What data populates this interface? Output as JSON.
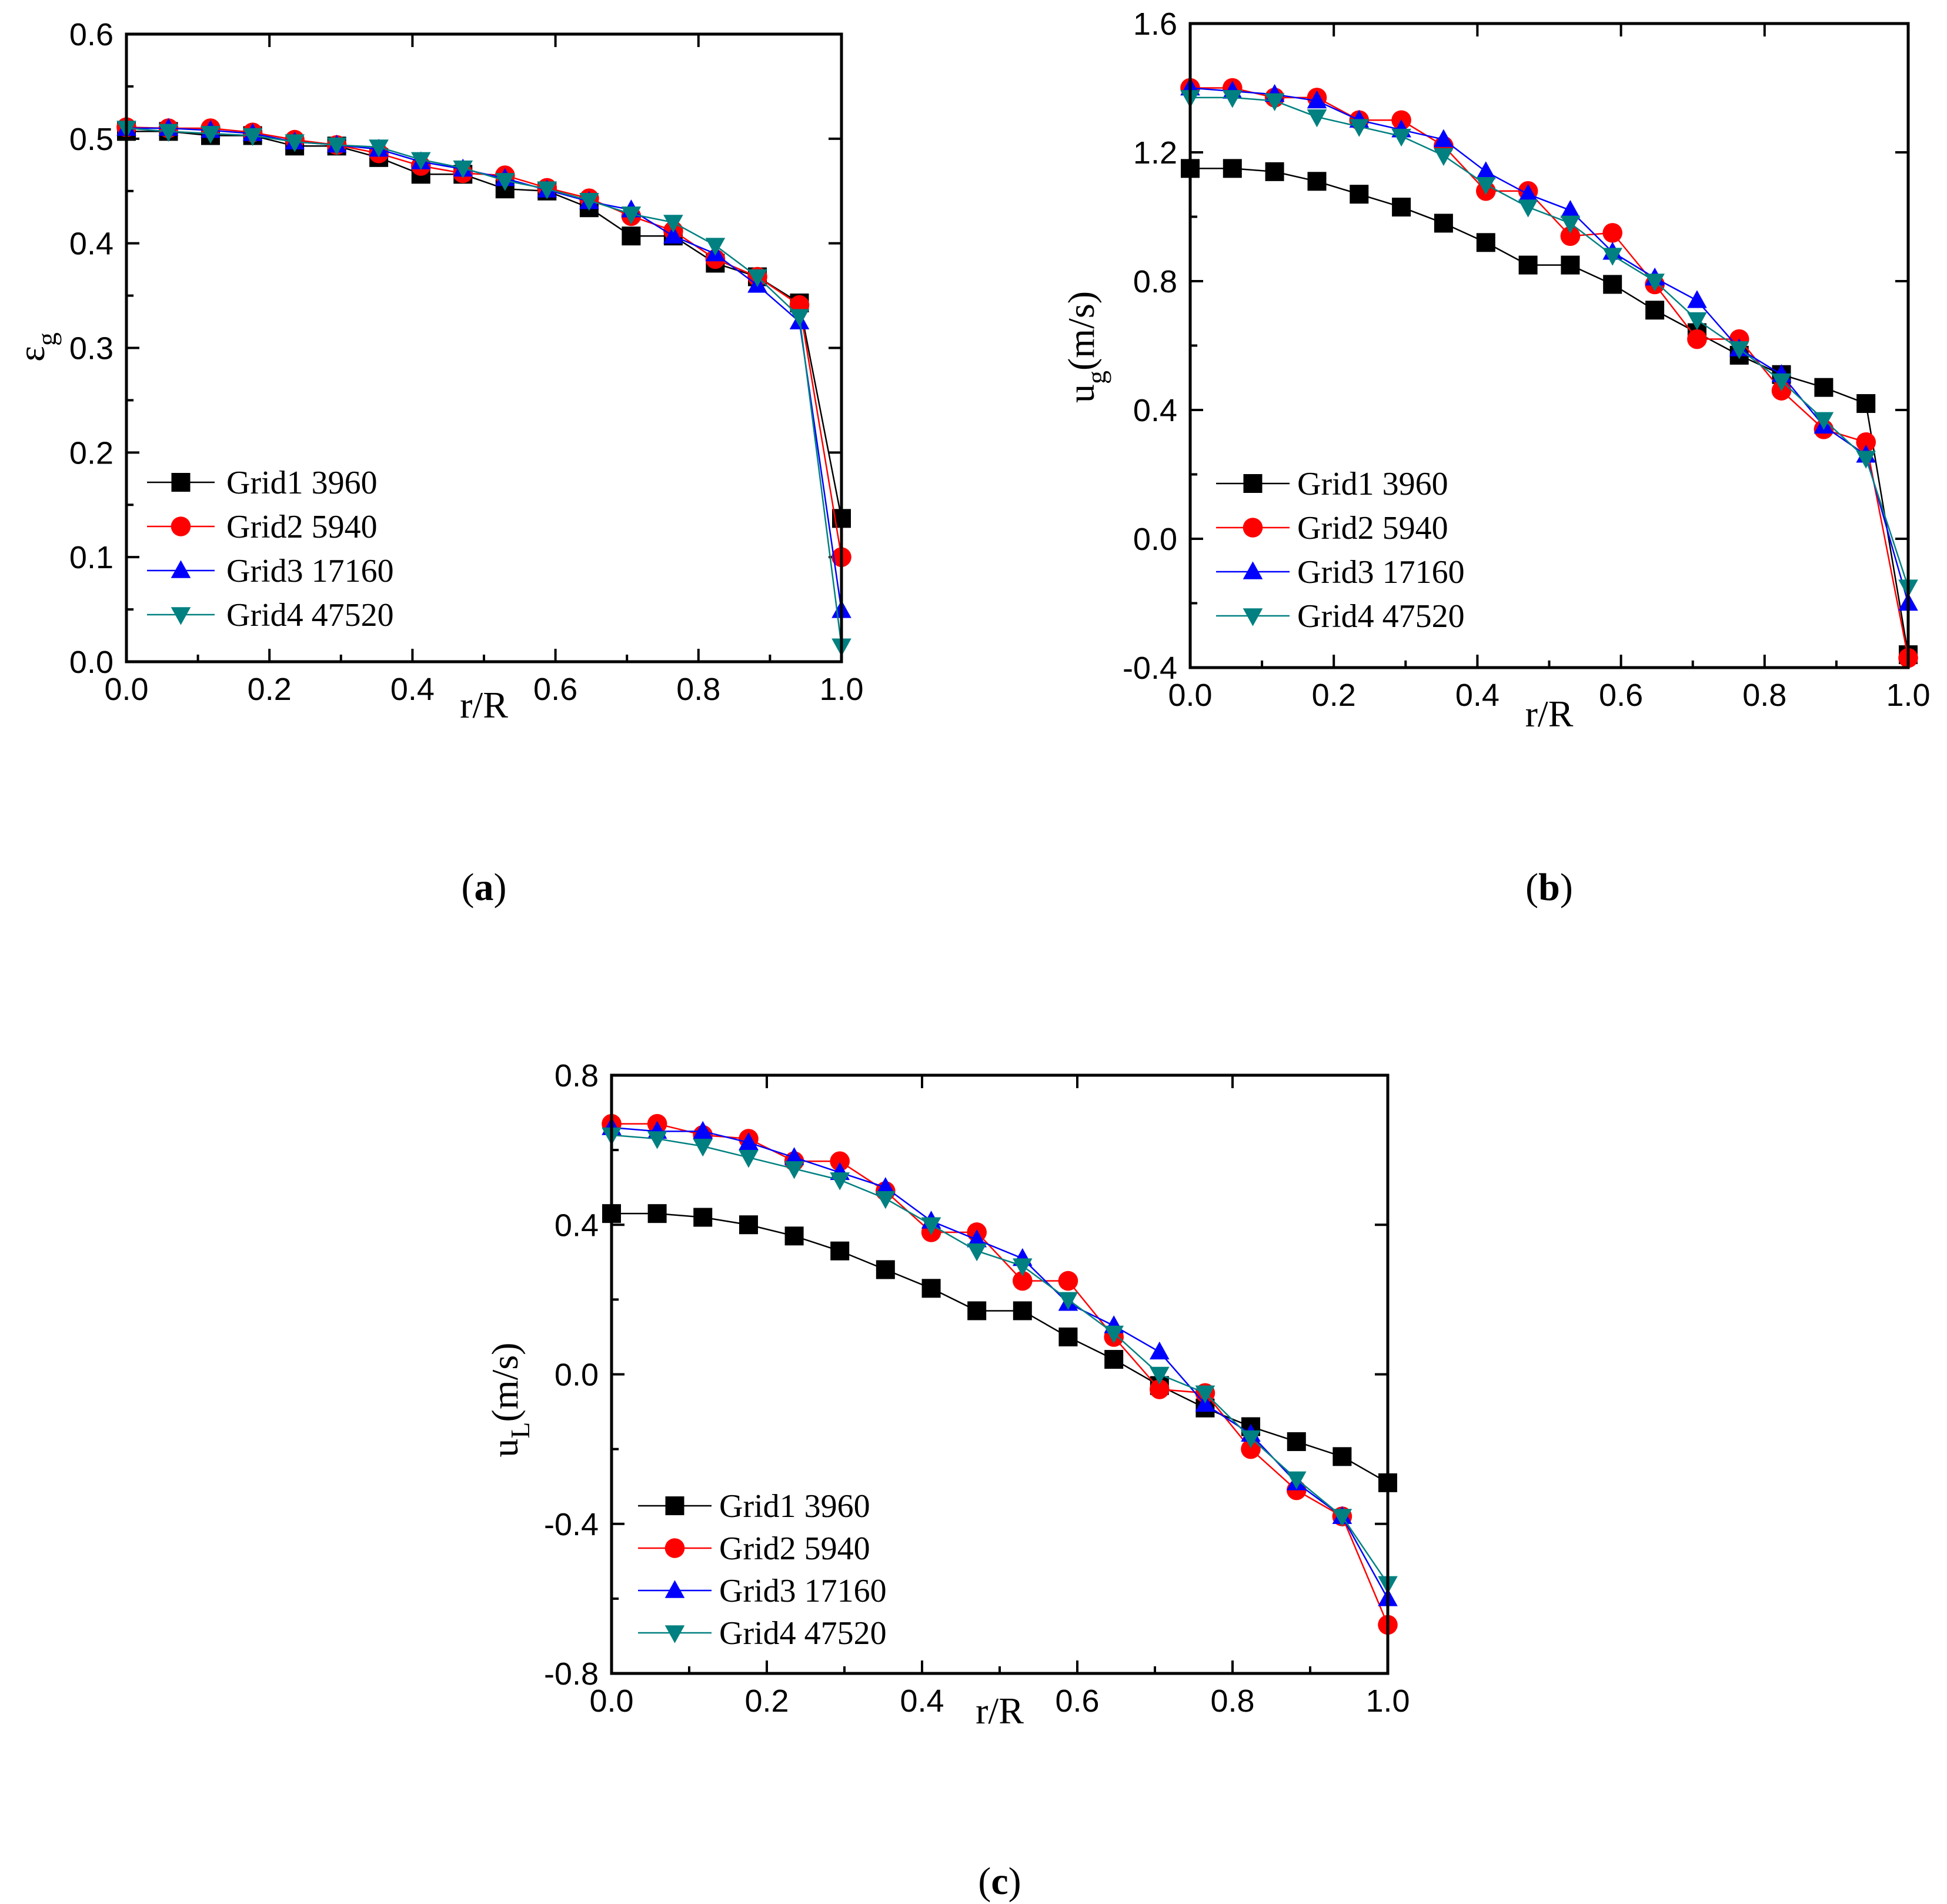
{
  "chart_data": [
    {
      "type": "line",
      "panel": "a",
      "panel_label": "a",
      "title": "",
      "xlabel": "r/R",
      "ylabel": "ε",
      "ylabel_sub": "g",
      "xlim": [
        0,
        1
      ],
      "ylim": [
        0,
        0.6
      ],
      "xticks": [
        "0.0",
        "0.2",
        "0.4",
        "0.6",
        "0.8",
        "1.0"
      ],
      "yticks": [
        "0.0",
        "0.1",
        "0.2",
        "0.3",
        "0.4",
        "0.5",
        "0.6"
      ],
      "legend_position": "lower-left",
      "x": [
        0.0,
        0.0588,
        0.1176,
        0.1765,
        0.2353,
        0.2941,
        0.3529,
        0.4118,
        0.4706,
        0.5294,
        0.5882,
        0.6471,
        0.7059,
        0.7647,
        0.8235,
        0.8824,
        0.9412,
        1.0
      ],
      "series": [
        {
          "name": "Grid1 3960",
          "color": "#000000",
          "marker": "square",
          "values": [
            0.507,
            0.507,
            0.503,
            0.503,
            0.493,
            0.493,
            0.482,
            0.466,
            0.466,
            0.452,
            0.45,
            0.434,
            0.407,
            0.407,
            0.381,
            0.368,
            0.343,
            0.137
          ]
        },
        {
          "name": "Grid2 5940",
          "color": "#ff0000",
          "marker": "circle",
          "values": [
            0.511,
            0.51,
            0.51,
            0.506,
            0.499,
            0.494,
            0.486,
            0.474,
            0.467,
            0.465,
            0.453,
            0.443,
            0.426,
            0.412,
            0.385,
            0.368,
            0.341,
            0.1
          ]
        },
        {
          "name": "Grid3 17160",
          "color": "#0000ff",
          "marker": "triangle-up",
          "values": [
            0.51,
            0.51,
            0.508,
            0.505,
            0.497,
            0.494,
            0.49,
            0.478,
            0.471,
            0.462,
            0.451,
            0.44,
            0.432,
            0.407,
            0.39,
            0.36,
            0.325,
            0.049
          ]
        },
        {
          "name": "Grid4 47520",
          "color": "#008080",
          "marker": "triangle-down",
          "values": [
            0.51,
            0.507,
            0.505,
            0.503,
            0.497,
            0.494,
            0.492,
            0.48,
            0.472,
            0.46,
            0.452,
            0.441,
            0.428,
            0.42,
            0.398,
            0.368,
            0.33,
            0.015
          ]
        }
      ]
    },
    {
      "type": "line",
      "panel": "b",
      "panel_label": "b",
      "title": "",
      "xlabel": "r/R",
      "ylabel": "u",
      "ylabel_sub": "g",
      "ylabel_unit": "(m/s)",
      "xlim": [
        0,
        1
      ],
      "ylim": [
        -0.4,
        1.6
      ],
      "xticks": [
        "0.0",
        "0.2",
        "0.4",
        "0.6",
        "0.8",
        "1.0"
      ],
      "yticks": [
        "-0.4",
        "0.0",
        "0.4",
        "0.8",
        "1.2",
        "1.6"
      ],
      "legend_position": "lower-left",
      "x": [
        0.0,
        0.0588,
        0.1176,
        0.1765,
        0.2353,
        0.2941,
        0.3529,
        0.4118,
        0.4706,
        0.5294,
        0.5882,
        0.6471,
        0.7059,
        0.7647,
        0.8235,
        0.8824,
        0.9412,
        1.0
      ],
      "series": [
        {
          "name": "Grid1 3960",
          "color": "#000000",
          "marker": "square",
          "values": [
            1.15,
            1.15,
            1.14,
            1.11,
            1.07,
            1.03,
            0.98,
            0.92,
            0.85,
            0.85,
            0.79,
            0.71,
            0.64,
            0.57,
            0.51,
            0.47,
            0.42,
            -0.36
          ]
        },
        {
          "name": "Grid2 5940",
          "color": "#ff0000",
          "marker": "circle",
          "values": [
            1.4,
            1.4,
            1.37,
            1.37,
            1.3,
            1.3,
            1.22,
            1.08,
            1.08,
            0.94,
            0.95,
            0.79,
            0.62,
            0.62,
            0.46,
            0.34,
            0.3,
            -0.37
          ]
        },
        {
          "name": "Grid3 17160",
          "color": "#0000ff",
          "marker": "triangle-up",
          "values": [
            1.4,
            1.39,
            1.38,
            1.36,
            1.3,
            1.27,
            1.24,
            1.14,
            1.07,
            1.02,
            0.89,
            0.81,
            0.74,
            0.59,
            0.51,
            0.35,
            0.26,
            -0.2
          ]
        },
        {
          "name": "Grid4 47520",
          "color": "#008080",
          "marker": "triangle-down",
          "values": [
            1.37,
            1.37,
            1.36,
            1.31,
            1.28,
            1.25,
            1.19,
            1.1,
            1.03,
            0.98,
            0.88,
            0.8,
            0.68,
            0.59,
            0.49,
            0.37,
            0.25,
            -0.15
          ]
        }
      ]
    },
    {
      "type": "line",
      "panel": "c",
      "panel_label": "c",
      "title": "",
      "xlabel": "r/R",
      "ylabel": "u",
      "ylabel_sub": "L",
      "ylabel_unit": "(m/s)",
      "xlim": [
        0,
        1
      ],
      "ylim": [
        -0.8,
        0.8
      ],
      "xticks": [
        "0.0",
        "0.2",
        "0.4",
        "0.6",
        "0.8",
        "1.0"
      ],
      "yticks": [
        "-0.8",
        "-0.4",
        "0.0",
        "0.4",
        "0.8"
      ],
      "legend_position": "lower-left",
      "x": [
        0.0,
        0.0588,
        0.1176,
        0.1765,
        0.2353,
        0.2941,
        0.3529,
        0.4118,
        0.4706,
        0.5294,
        0.5882,
        0.6471,
        0.7059,
        0.7647,
        0.8235,
        0.8824,
        0.9412,
        1.0
      ],
      "series": [
        {
          "name": "Grid1 3960",
          "color": "#000000",
          "marker": "square",
          "values": [
            0.43,
            0.43,
            0.42,
            0.4,
            0.37,
            0.33,
            0.28,
            0.23,
            0.17,
            0.17,
            0.1,
            0.04,
            -0.03,
            -0.09,
            -0.14,
            -0.18,
            -0.22,
            -0.29
          ]
        },
        {
          "name": "Grid2 5940",
          "color": "#ff0000",
          "marker": "circle",
          "values": [
            0.67,
            0.67,
            0.64,
            0.63,
            0.57,
            0.57,
            0.49,
            0.38,
            0.38,
            0.25,
            0.25,
            0.1,
            -0.04,
            -0.05,
            -0.2,
            -0.31,
            -0.38,
            -0.67
          ]
        },
        {
          "name": "Grid3 17160",
          "color": "#0000ff",
          "marker": "triangle-up",
          "values": [
            0.66,
            0.65,
            0.65,
            0.62,
            0.58,
            0.54,
            0.5,
            0.41,
            0.36,
            0.31,
            0.19,
            0.13,
            0.06,
            -0.08,
            -0.16,
            -0.29,
            -0.38,
            -0.6
          ]
        },
        {
          "name": "Grid4 47520",
          "color": "#008080",
          "marker": "triangle-down",
          "values": [
            0.64,
            0.63,
            0.61,
            0.58,
            0.55,
            0.52,
            0.47,
            0.4,
            0.33,
            0.29,
            0.2,
            0.11,
            0.0,
            -0.05,
            -0.17,
            -0.28,
            -0.38,
            -0.56
          ]
        }
      ]
    }
  ]
}
